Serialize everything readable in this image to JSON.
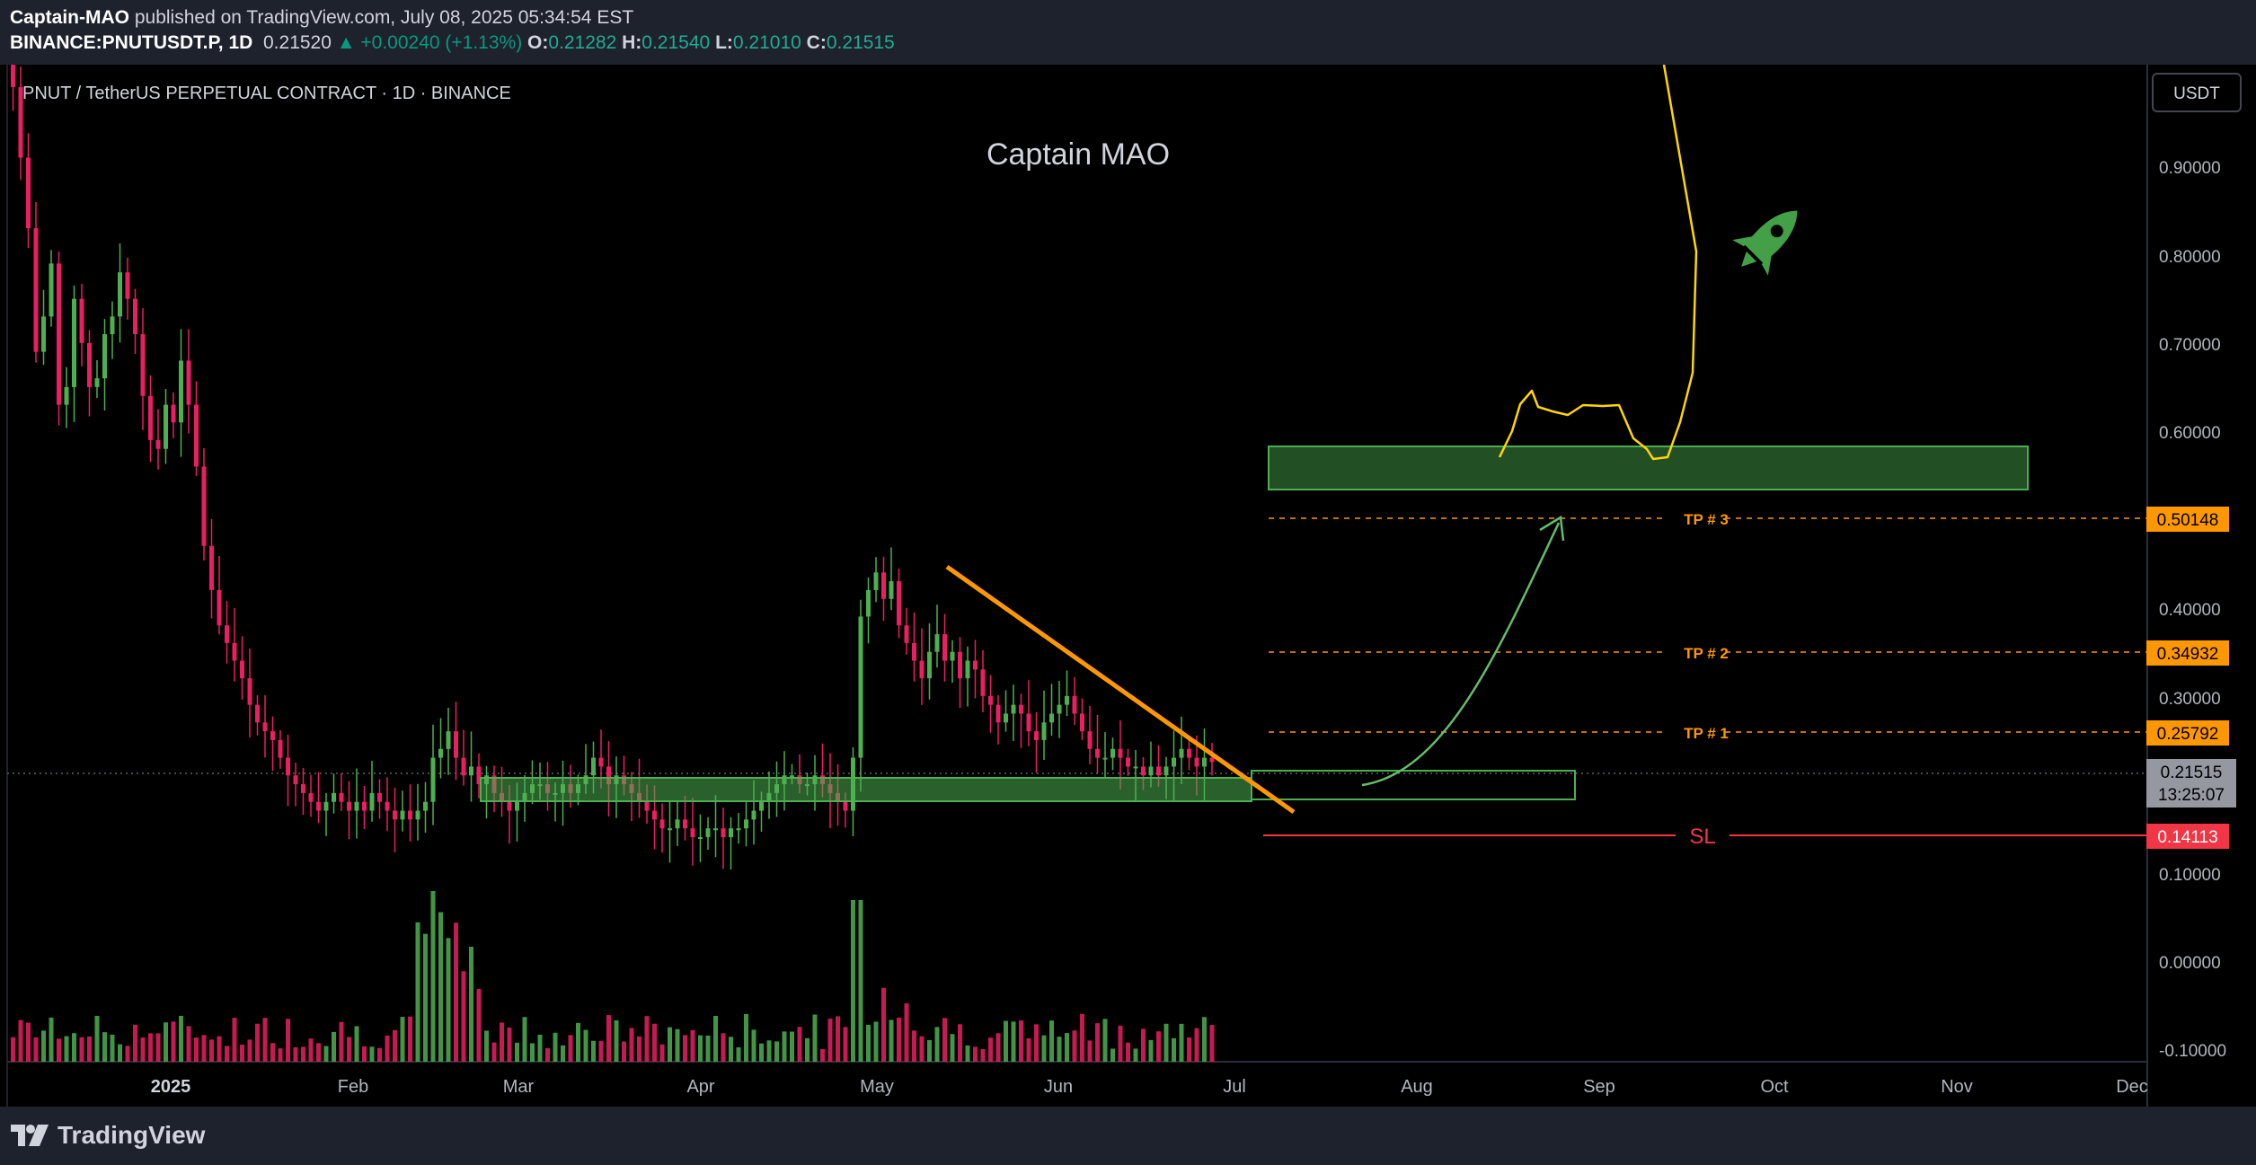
{
  "header": {
    "author": "Captain-MAO",
    "published_text": "published on TradingView.com, July 08, 2025 05:34:54 EST",
    "symbol": "BINANCE:PNUTUSDT.P, 1D",
    "last": "0.21520",
    "change": "▲ +0.00240 (+1.13%)",
    "o_label": "O:",
    "o": "0.21282",
    "h_label": "H:",
    "h": "0.21540",
    "l_label": "L:",
    "l": "0.21010",
    "c_label": "C:",
    "c": "0.21515"
  },
  "chart_data": {
    "type": "candlestick",
    "title": "PNUT / TetherUS PERPETUAL CONTRACT · 1D · BINANCE",
    "watermark": "Captain MAO",
    "currency_button": "USDT",
    "y_ticks": [
      "0.90000",
      "0.80000",
      "0.70000",
      "0.60000",
      "0.40000",
      "0.30000",
      "0.10000",
      "0.00000",
      "-0.10000"
    ],
    "x_ticks": [
      "2025",
      "Feb",
      "Mar",
      "Apr",
      "May",
      "Jun",
      "Jul",
      "Aug",
      "Sep",
      "Oct",
      "Nov",
      "Dec"
    ],
    "price_labels": {
      "tp3": "0.50148",
      "tp2": "0.34932",
      "tp1": "0.25792",
      "current": "0.21515",
      "countdown": "13:25:07",
      "sl": "0.14113"
    },
    "levels": {
      "tp3": 0.50148,
      "tp2": 0.34932,
      "tp1": 0.25792,
      "sl": 0.14113,
      "current": 0.21515
    },
    "annotations": {
      "tp1": "TP # 1",
      "tp2": "TP # 2",
      "tp3": "TP # 3",
      "sl": "SL"
    },
    "target_zone": [
      0.54,
      0.59
    ],
    "support_zone": [
      0.183,
      0.208
    ],
    "close_series": [
      0.98,
      0.9,
      0.82,
      0.68,
      0.72,
      0.78,
      0.62,
      0.64,
      0.74,
      0.69,
      0.64,
      0.65,
      0.7,
      0.72,
      0.77,
      0.74,
      0.7,
      0.63,
      0.58,
      0.57,
      0.62,
      0.6,
      0.67,
      0.62,
      0.55,
      0.46,
      0.41,
      0.37,
      0.35,
      0.33,
      0.31,
      0.28,
      0.26,
      0.25,
      0.24,
      0.22,
      0.2,
      0.19,
      0.18,
      0.17,
      0.16,
      0.17,
      0.18,
      0.17,
      0.16,
      0.17,
      0.16,
      0.18,
      0.17,
      0.16,
      0.15,
      0.16,
      0.15,
      0.16,
      0.17,
      0.22,
      0.23,
      0.25,
      0.22,
      0.2,
      0.21,
      0.19,
      0.2,
      0.18,
      0.17,
      0.16,
      0.17,
      0.18,
      0.19,
      0.19,
      0.18,
      0.18,
      0.19,
      0.18,
      0.19,
      0.2,
      0.22,
      0.21,
      0.19,
      0.2,
      0.19,
      0.18,
      0.17,
      0.16,
      0.15,
      0.14,
      0.14,
      0.15,
      0.14,
      0.13,
      0.13,
      0.14,
      0.14,
      0.13,
      0.14,
      0.14,
      0.15,
      0.16,
      0.17,
      0.18,
      0.19,
      0.2,
      0.2,
      0.19,
      0.19,
      0.2,
      0.19,
      0.18,
      0.17,
      0.16,
      0.22,
      0.38,
      0.41,
      0.43,
      0.4,
      0.42,
      0.37,
      0.35,
      0.33,
      0.31,
      0.34,
      0.36,
      0.33,
      0.34,
      0.31,
      0.33,
      0.32,
      0.29,
      0.28,
      0.26,
      0.27,
      0.28,
      0.27,
      0.25,
      0.24,
      0.26,
      0.27,
      0.28,
      0.29,
      0.27,
      0.25,
      0.23,
      0.22,
      0.22,
      0.23,
      0.22,
      0.21,
      0.21,
      0.2,
      0.21,
      0.2,
      0.21,
      0.22,
      0.23,
      0.22,
      0.21,
      0.22,
      0.21515
    ]
  },
  "footer": {
    "brand": "TradingView"
  }
}
